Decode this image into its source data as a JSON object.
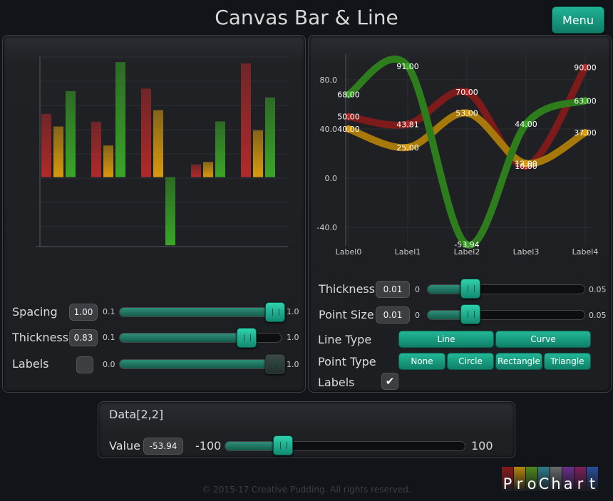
{
  "header": {
    "title": "Canvas Bar & Line",
    "menu_label": "Menu"
  },
  "colors": {
    "red": "#b02a2a",
    "orange": "#d99a0c",
    "green": "#3aa528",
    "accent": "#1aa386"
  },
  "bar_panel": {
    "spacing": {
      "label": "Spacing",
      "value": "1.00",
      "min": "0.1",
      "max": "1.0",
      "position": 1.0
    },
    "thickness": {
      "label": "Thickness",
      "value": "0.83",
      "min": "0.1",
      "max": "1.0",
      "position": 0.81
    },
    "labels": {
      "label": "Labels",
      "min": "0.0",
      "max": "1.0",
      "position": 1.0,
      "checked": false
    }
  },
  "line_panel": {
    "thickness": {
      "label": "Thickness",
      "value": "0.01",
      "min": "0",
      "max": "0.05",
      "position": 0.25
    },
    "point_size": {
      "label": "Point Size",
      "value": "0.01",
      "min": "0",
      "max": "0.05",
      "position": 0.25
    },
    "line_type": {
      "label": "Line Type",
      "options": [
        "Line",
        "Curve"
      ]
    },
    "point_type": {
      "label": "Point Type",
      "options": [
        "None",
        "Circle",
        "Rectangle",
        "Triangle"
      ]
    },
    "labels": {
      "label": "Labels",
      "checked": true,
      "check_glyph": "✔"
    }
  },
  "data_panel": {
    "title": "Data[2,2]",
    "value_label": "Value",
    "value": "-53.94",
    "min": "-100",
    "max": "100",
    "position": 0.23
  },
  "footer": {
    "copyright": "© 2015-17 Creative Pudding. All rights reserved.",
    "logo_letters": [
      "P",
      "r",
      "o",
      "C",
      "h",
      "a",
      "r",
      "t"
    ],
    "logo_colors": [
      "#8b1a1a",
      "#b8860b",
      "#4e8a1e",
      "#2e7d8a",
      "#6a6a6a",
      "#6b2e8a",
      "#7a1e5a",
      "#2a4e9a"
    ]
  },
  "chart_data": [
    {
      "type": "bar",
      "categories": [
        "",
        "",
        "",
        "",
        ""
      ],
      "series": [
        {
          "values": [
            50,
            43.81,
            70,
            10,
            90
          ]
        },
        {
          "values": [
            40,
            25,
            53,
            12,
            37
          ]
        },
        {
          "values": [
            68,
            91,
            -53.94,
            44,
            63
          ]
        }
      ],
      "ylim": [
        -55,
        95
      ]
    },
    {
      "type": "line",
      "categories": [
        "Label0",
        "Label1",
        "Label2",
        "Label3",
        "Label4"
      ],
      "yticks": [
        "80.0",
        "40.0",
        "0.0",
        "-40.0"
      ],
      "ytick_values": [
        80,
        40,
        0,
        -40
      ],
      "series": [
        {
          "values": [
            50,
            43.81,
            70,
            10,
            90
          ],
          "labels": [
            "50.00",
            "43.81",
            "70.00",
            "10.00",
            "90.00"
          ]
        },
        {
          "values": [
            40,
            25,
            53,
            12,
            37
          ],
          "labels": [
            "40.00",
            "25.00",
            "53.00",
            "12.00",
            "37.00"
          ]
        },
        {
          "values": [
            68,
            91,
            -53.94,
            44,
            63
          ],
          "labels": [
            "68.00",
            "91.00",
            "-53.94",
            "44.00",
            "63.00"
          ]
        }
      ],
      "ylim": [
        -55,
        95
      ]
    }
  ]
}
